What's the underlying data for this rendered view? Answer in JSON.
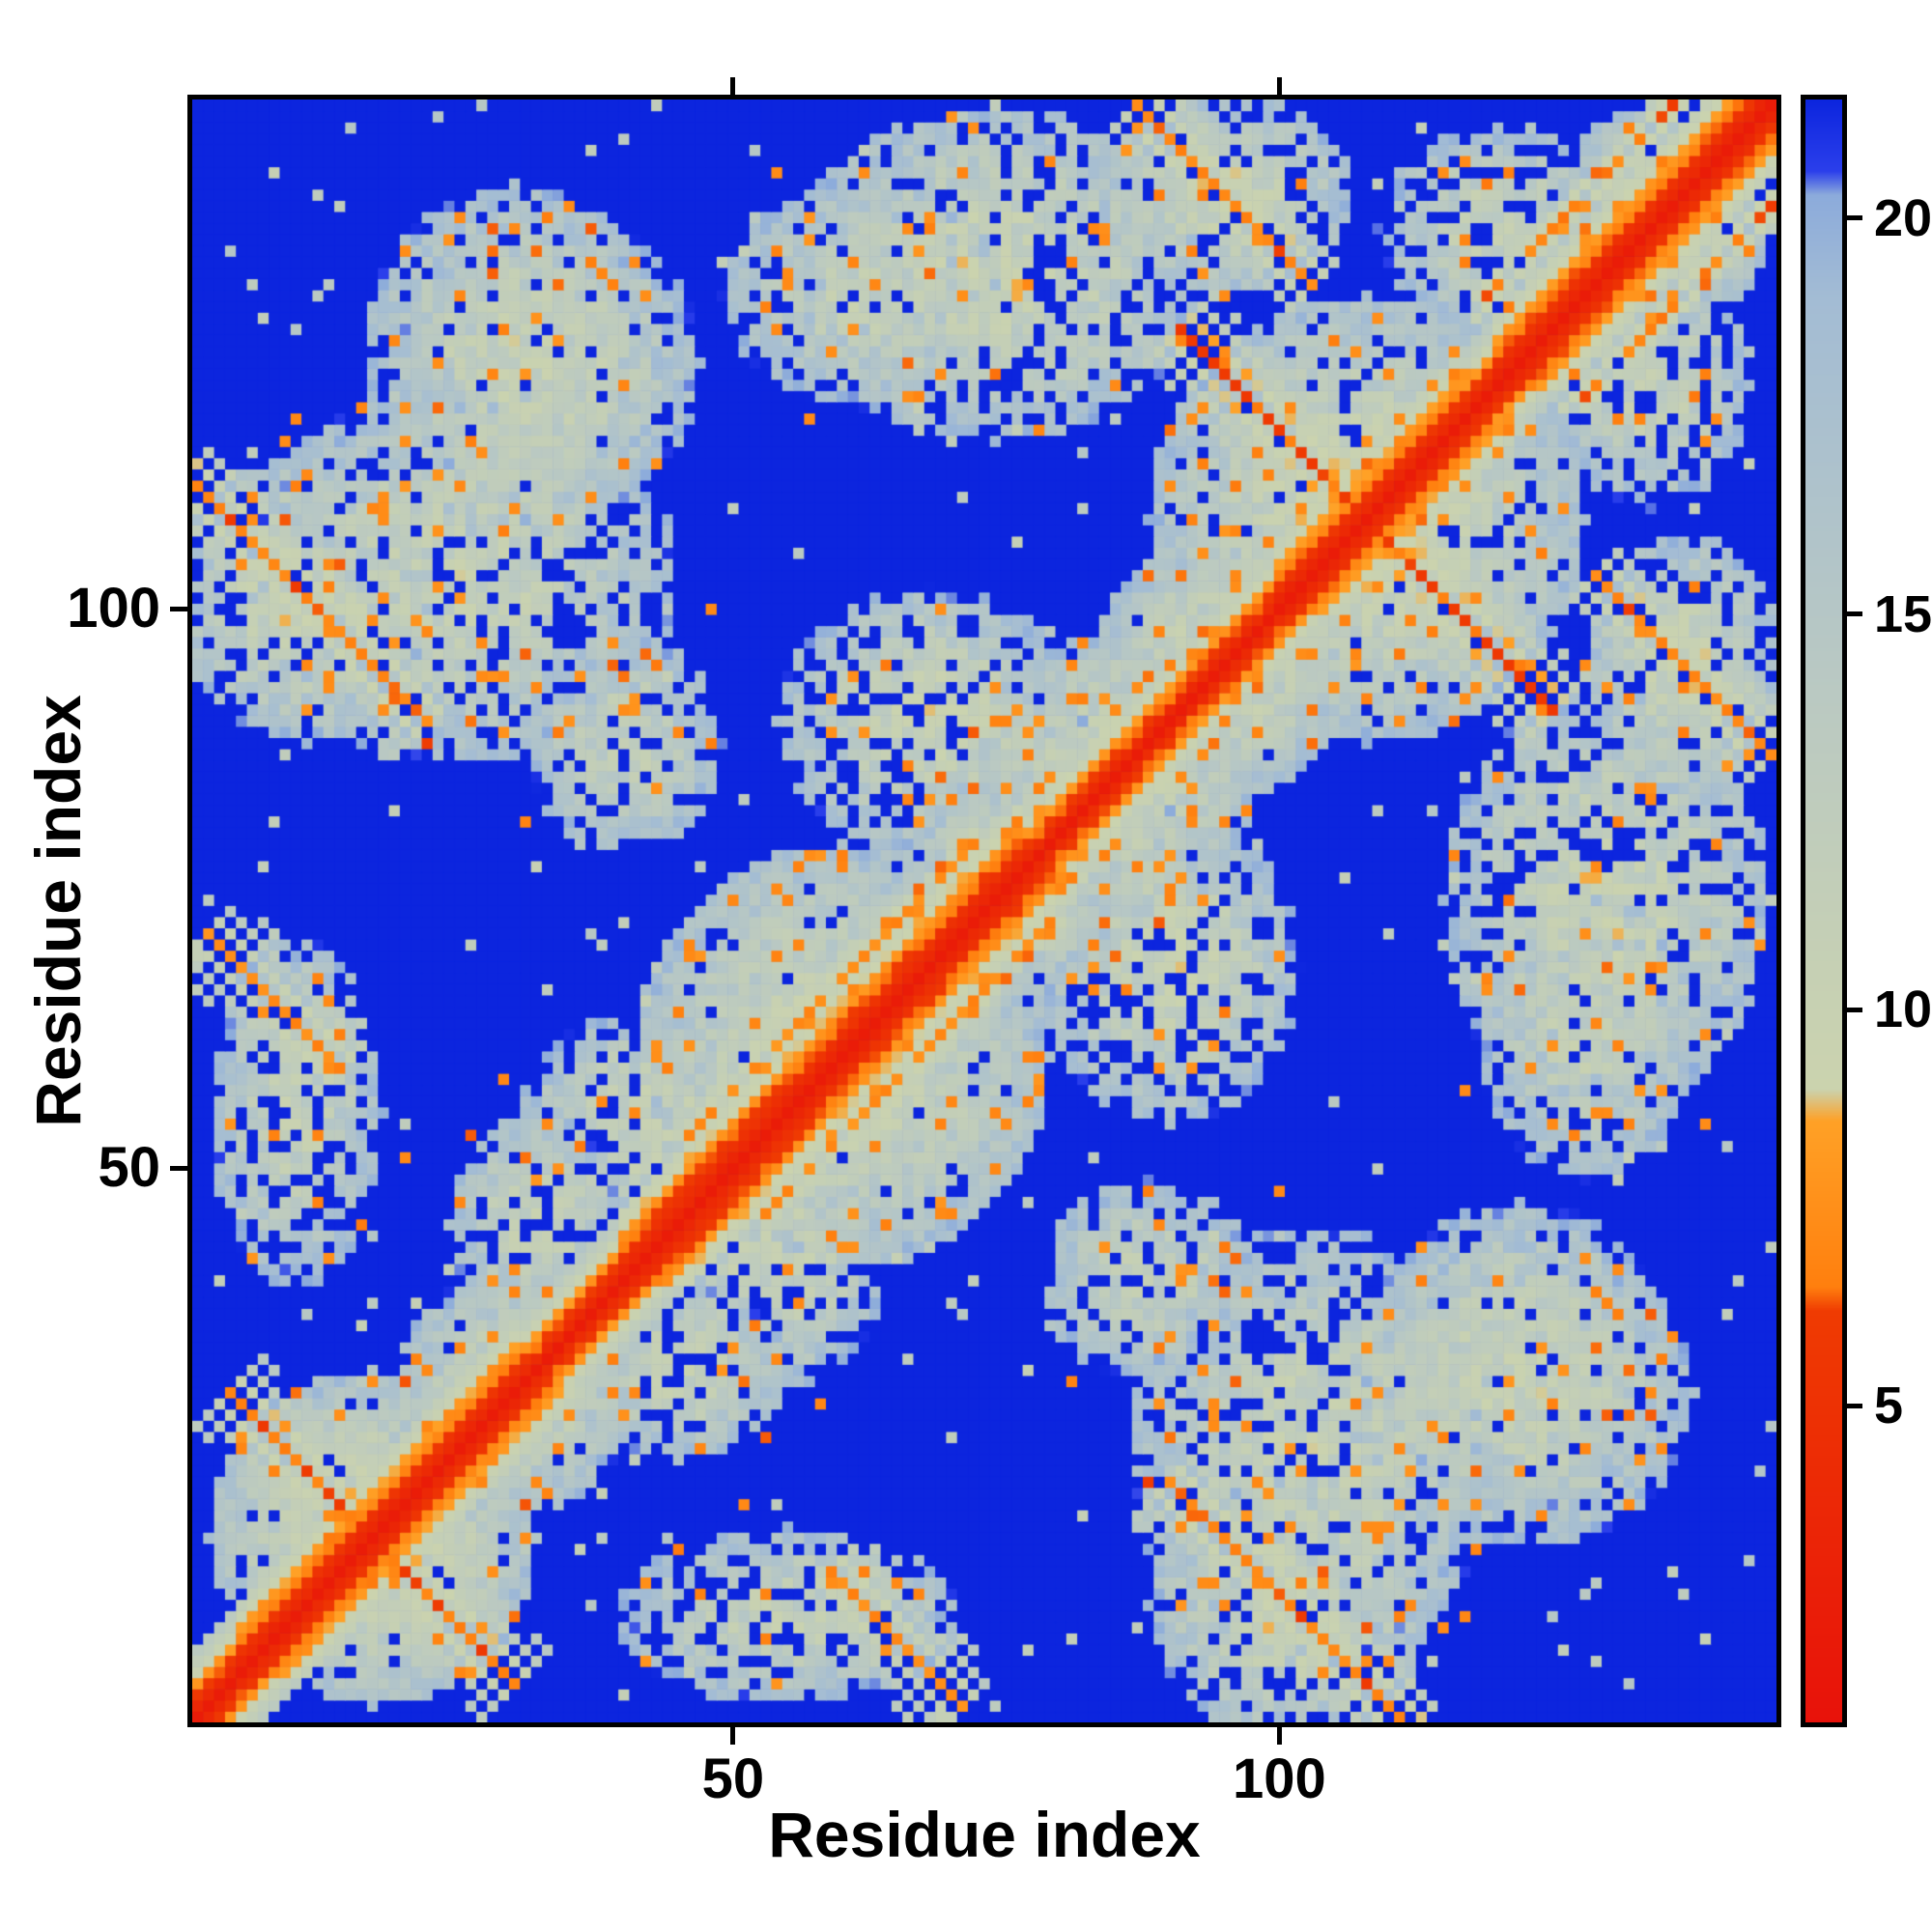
{
  "chart_data": {
    "type": "heatmap",
    "title": "",
    "xlabel": "Residue index",
    "ylabel": "Residue index",
    "n_residues": 145,
    "x_ticks": [
      50,
      100
    ],
    "y_ticks": [
      50,
      100
    ],
    "background": "#ffffff",
    "frame_color": "#000000",
    "colorbar": {
      "orientation": "vertical",
      "ticks": [
        5,
        10,
        15,
        20
      ],
      "vmin": 1.0,
      "vmax": 21.5
    },
    "colormap": {
      "name": "distance-red-orange-pale-blue",
      "stops": [
        {
          "v": 1.0,
          "color": "#e8120a"
        },
        {
          "v": 6.2,
          "color": "#ef3b02"
        },
        {
          "v": 6.5,
          "color": "#ff7f0e"
        },
        {
          "v": 8.6,
          "color": "#ffa126"
        },
        {
          "v": 9.0,
          "color": "#cbd3ae"
        },
        {
          "v": 14.0,
          "color": "#bac9c2"
        },
        {
          "v": 19.0,
          "color": "#a3bcd4"
        },
        {
          "v": 20.3,
          "color": "#8cabdb"
        },
        {
          "v": 20.6,
          "color": "#2b3feb"
        },
        {
          "v": 21.5,
          "color": "#0c25de"
        }
      ]
    },
    "matrix_model": {
      "description": "Symmetric residue-residue distance map (values in same units as colorbar); reconstructed from visible contact features",
      "base_distance": 21.5,
      "diagonal": {
        "core": 2.3,
        "per_offset": 1.9,
        "max_offset": 6
      },
      "helix_segments": [
        {
          "start": 5,
          "end": 30,
          "per_offset": 1.5
        },
        {
          "start": 40,
          "end": 76,
          "per_offset": 1.35
        },
        {
          "start": 100,
          "end": 116,
          "per_offset": 1.5
        },
        {
          "start": 120,
          "end": 145,
          "per_offset": 1.45
        }
      ],
      "antiparallel_contacts": [
        {
          "cx": 17,
          "cy": 17,
          "half_len": 13,
          "distance": 6.6
        },
        {
          "cx": 11,
          "cy": 101,
          "half_len": 11,
          "distance": 6.8
        },
        {
          "cx": 108,
          "cy": 108,
          "half_len": 17,
          "distance": 6.5
        },
        {
          "cx": 95,
          "cy": 137,
          "half_len": 8,
          "distance": 7.0
        },
        {
          "cx": 65,
          "cy": 8,
          "half_len": 6,
          "distance": 7.2
        }
      ],
      "parallel_contacts": [
        {
          "start": 118,
          "end": 145,
          "offset": 9,
          "distance": 6.9
        },
        {
          "start": 46,
          "end": 72,
          "offset": 7,
          "distance": 7.4
        }
      ],
      "proximity_clusters": [
        {
          "cx": 17,
          "cy": 17,
          "rx": 15,
          "ry": 15,
          "v": 10.6
        },
        {
          "cx": 30,
          "cy": 30,
          "rx": 11,
          "ry": 11,
          "v": 11.2
        },
        {
          "cx": 11,
          "cy": 101,
          "rx": 12,
          "ry": 13,
          "v": 10.8
        },
        {
          "cx": 25,
          "cy": 103,
          "rx": 20,
          "ry": 17,
          "v": 11.6
        },
        {
          "cx": 33,
          "cy": 122,
          "rx": 14,
          "ry": 14,
          "v": 11.5
        },
        {
          "cx": 108,
          "cy": 108,
          "rx": 20,
          "ry": 20,
          "v": 10.6
        },
        {
          "cx": 95,
          "cy": 137,
          "rx": 12,
          "ry": 9,
          "v": 11.2
        },
        {
          "cx": 122,
          "cy": 30,
          "rx": 16,
          "ry": 14,
          "v": 11.3
        },
        {
          "cx": 130,
          "cy": 74,
          "rx": 15,
          "ry": 19,
          "v": 11.0
        },
        {
          "cx": 68,
          "cy": 90,
          "rx": 14,
          "ry": 12,
          "v": 11.2
        },
        {
          "cx": 60,
          "cy": 60,
          "rx": 19,
          "ry": 19,
          "v": 10.9
        },
        {
          "cx": 85,
          "cy": 85,
          "rx": 13,
          "ry": 13,
          "v": 11.0
        },
        {
          "cx": 95,
          "cy": 95,
          "rx": 12,
          "ry": 12,
          "v": 11.1
        },
        {
          "cx": 75,
          "cy": 75,
          "rx": 10,
          "ry": 10,
          "v": 10.9
        },
        {
          "cx": 42,
          "cy": 54,
          "rx": 12,
          "ry": 10,
          "v": 11.3
        },
        {
          "cx": 45,
          "cy": 32,
          "rx": 10,
          "ry": 8,
          "v": 11.6
        },
        {
          "cx": 55,
          "cy": 10,
          "rx": 16,
          "ry": 8,
          "v": 12.0
        },
        {
          "cx": 62,
          "cy": 128,
          "rx": 13,
          "ry": 10,
          "v": 12.0
        },
        {
          "cx": 135,
          "cy": 135,
          "rx": 10,
          "ry": 10,
          "v": 11.0
        },
        {
          "cx": 120,
          "cy": 134,
          "rx": 11,
          "ry": 9,
          "v": 11.4
        },
        {
          "cx": 88,
          "cy": 40,
          "rx": 10,
          "ry": 9,
          "v": 12.0
        }
      ],
      "noise": {
        "seed": 1337,
        "pale_speckle_prob": 0.013,
        "orange_speckle_prob": 0.0035,
        "pale_value": 13,
        "orange_value": 6.8,
        "blob_jitter": 5.5,
        "cluster_orange_prob": 0.03
      }
    }
  }
}
